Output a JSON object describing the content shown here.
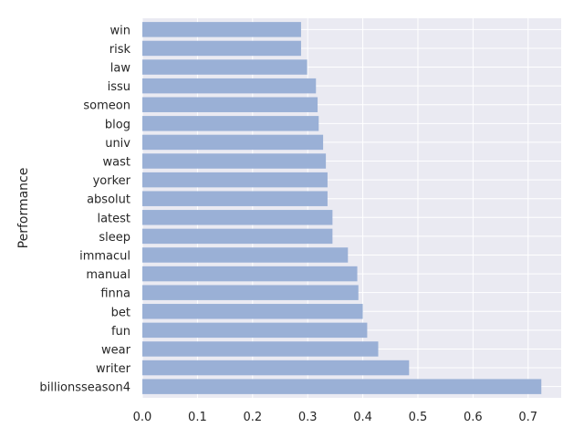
{
  "chart_data": {
    "type": "bar",
    "orientation": "horizontal",
    "title": "",
    "xlabel": "",
    "ylabel": "Performance",
    "xlim": [
      0,
      0.76
    ],
    "xticks": [
      "0.0",
      "0.1",
      "0.2",
      "0.3",
      "0.4",
      "0.5",
      "0.6",
      "0.7"
    ],
    "grid": true,
    "bar_color": "#9ab0d6",
    "background_color": "#eaeaf2",
    "categories": [
      "billionsseason4",
      "writer",
      "wear",
      "fun",
      "bet",
      "finna",
      "manual",
      "immacul",
      "sleep",
      "latest",
      "absolut",
      "yorker",
      "wast",
      "univ",
      "blog",
      "someon",
      "issu",
      "law",
      "risk",
      "win"
    ],
    "values": [
      0.724,
      0.484,
      0.428,
      0.408,
      0.4,
      0.392,
      0.39,
      0.373,
      0.345,
      0.345,
      0.336,
      0.336,
      0.333,
      0.328,
      0.32,
      0.318,
      0.315,
      0.299,
      0.288,
      0.288
    ]
  }
}
